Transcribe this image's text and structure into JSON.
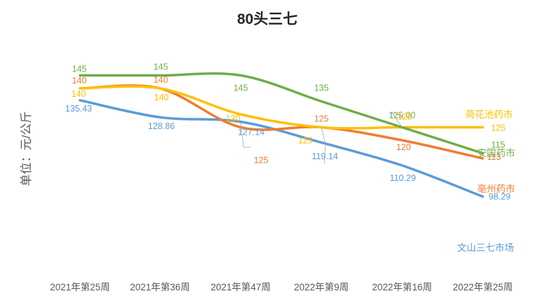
{
  "chart_data": {
    "type": "line",
    "title": "80头三七",
    "ylabel": "单位：元/公斤",
    "xlabel": "",
    "categories": [
      "2021年第25周",
      "2021年第36周",
      "2021年第47周",
      "2022年第9周",
      "2022年第16周",
      "2022年第25周"
    ],
    "ylim": [
      85,
      160
    ],
    "grid": false,
    "smooth": true,
    "series": [
      {
        "name": "安国药市",
        "color": "#70AD47",
        "values": [
          145,
          145,
          145,
          135,
          125.0,
          115
        ],
        "labels": [
          "145",
          "145",
          "145",
          "135",
          "125.00",
          "115"
        ]
      },
      {
        "name": "亳州药市",
        "color": "#ED7D31",
        "values": [
          140,
          140,
          125,
          125,
          120,
          113
        ],
        "labels": [
          "140",
          "140",
          "125",
          "125",
          "120",
          "113"
        ]
      },
      {
        "name": "荷花池药市",
        "color": "#FFC000",
        "values": [
          140,
          140,
          130,
          125,
          125,
          125
        ],
        "labels": [
          "140",
          "140",
          "130",
          "125",
          "125",
          "125"
        ]
      },
      {
        "name": "文山三七市场",
        "color": "#5B9BD5",
        "values": [
          135.43,
          128.86,
          127.14,
          119.14,
          110.29,
          98.29
        ],
        "labels": [
          "135.43",
          "128.86",
          "127.14",
          "119.14",
          "110.29",
          "98.29"
        ]
      }
    ]
  }
}
